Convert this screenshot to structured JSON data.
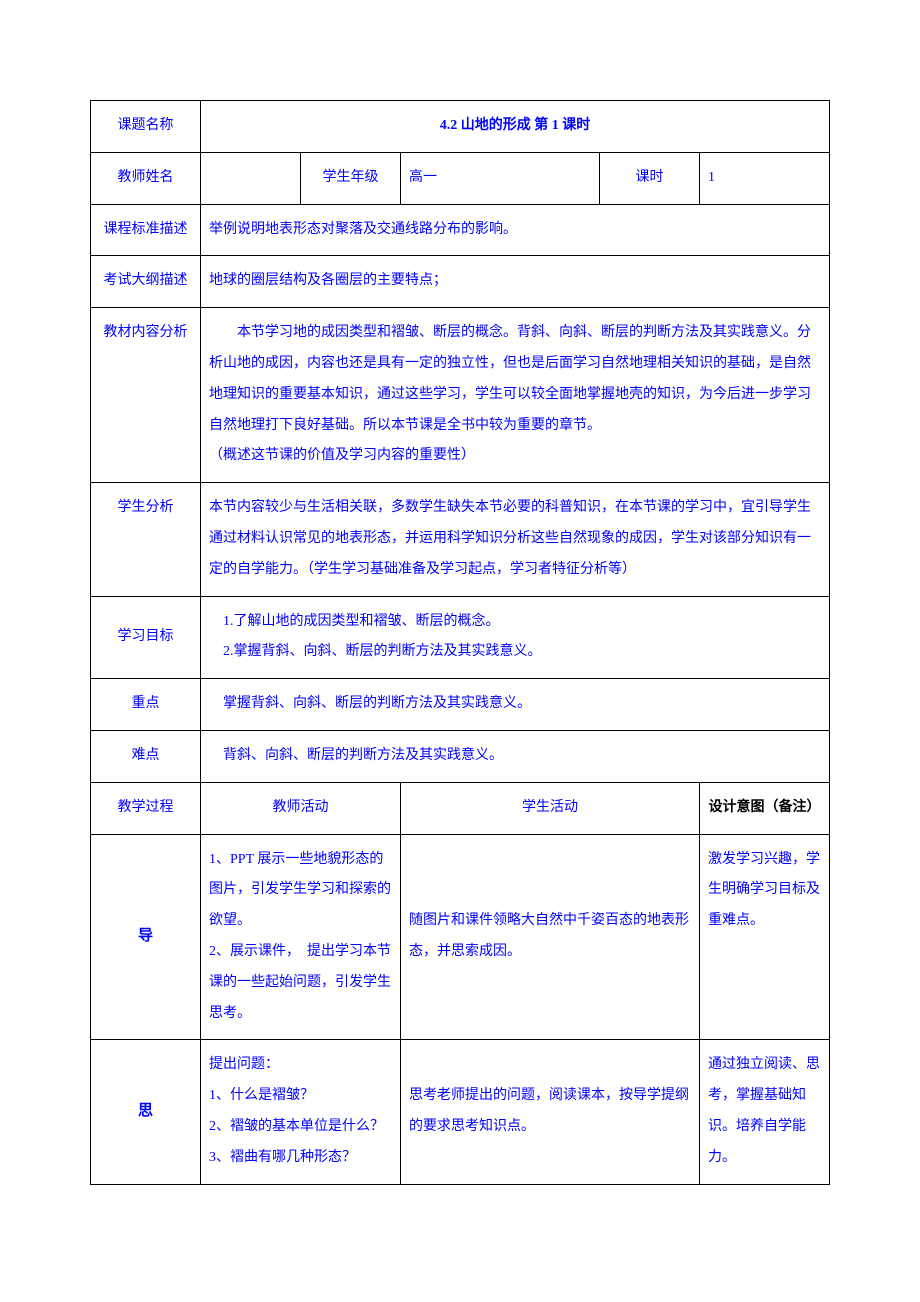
{
  "labels": {
    "lesson_name": "课题名称",
    "teacher_name": "教师姓名",
    "grade_label": "学生年级",
    "period_label": "课时",
    "curriculum_std": "课程标准描述",
    "exam_outline": "考试大纲描述",
    "content_analysis": "教材内容分析",
    "student_analysis": "学生分析",
    "learning_goals": "学习目标",
    "key_points": "重点",
    "difficulties": "难点",
    "teaching_process": "教学过程",
    "teacher_activity": "教师活动",
    "student_activity": "学生活动",
    "design_intent": "设计意图（备注）",
    "section_dao": "导",
    "section_si": "思"
  },
  "title": "4.2 山地的形成 第 1 课时",
  "grade_value": "高一",
  "period_value": "1",
  "curriculum_std_text": "举例说明地表形态对聚落及交通线路分布的影响。",
  "exam_outline_text": "地球的圈层结构及各圈层的主要特点；",
  "content_analysis_text": "　　本节学习地的成因类型和褶皱、断层的概念。背斜、向斜、断层的判断方法及其实践意义。分析山地的成因，内容也还是具有一定的独立性，但也是后面学习自然地理相关知识的基础，是自然地理知识的重要基本知识，通过这些学习，学生可以较全面地掌握地壳的知识，为今后进一步学习自然地理打下良好基础。所以本节课是全书中较为重要的章节。\n（概述这节课的价值及学习内容的重要性）",
  "student_analysis_text": "本节内容较少与生活相关联，多数学生缺失本节必要的科普知识，在本节课的学习中，宜引导学生通过材料认识常见的地表形态，并运用科学知识分析这些自然现象的成因，学生对该部分知识有一定的自学能力。（学生学习基础准备及学习起点，学习者特征分析等）",
  "learning_goals_text": "　1.了解山地的成因类型和褶皱、断层的概念。\n　2.掌握背斜、向斜、断层的判断方法及其实践意义。",
  "key_points_text": "　掌握背斜、向斜、断层的判断方法及其实践意义。",
  "difficulties_text": "　背斜、向斜、断层的判断方法及其实践意义。",
  "process": {
    "dao": {
      "teacher": "1、PPT 展示一些地貌形态的图片，引发学生学习和探索的欲望。\n2、展示课件，　提出学习本节课的一些起始问题，引发学生思考。",
      "student": "随图片和课件领略大自然中千姿百态的地表形态，并思索成因。",
      "design": "激发学习兴趣，学生明确学习目标及重难点。"
    },
    "si": {
      "teacher": "提出问题：\n1、什么是褶皱？\n2、褶皱的基本单位是什么？\n3、褶曲有哪几种形态？",
      "student": "思考老师提出的问题，阅读课本，按导学提纲的要求思考知识点。",
      "design": "通过独立阅读、思考，掌握基础知识。培养自学能力。"
    }
  },
  "colors": {
    "text_primary": "#0000ff",
    "text_black": "#000000",
    "border": "#000000",
    "background": "#ffffff"
  },
  "typography": {
    "font_family": "SimSun",
    "base_fontsize": 14,
    "line_height": 2.2
  }
}
